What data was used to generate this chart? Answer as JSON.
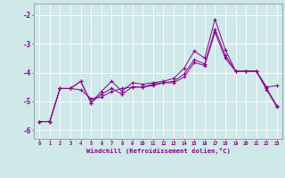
{
  "xlabel": "Windchill (Refroidissement éolien,°C)",
  "background_color": "#cfe8e8",
  "line_color": "#880088",
  "grid_color": "#ffffff",
  "x_hours": [
    0,
    1,
    2,
    3,
    4,
    5,
    6,
    7,
    8,
    9,
    10,
    11,
    12,
    13,
    14,
    15,
    16,
    17,
    18,
    19,
    20,
    21,
    22,
    23
  ],
  "x_labels": [
    "0",
    "1",
    "2",
    "3",
    "4",
    "5",
    "6",
    "7",
    "8",
    "9",
    "10",
    "11",
    "12",
    "13",
    "14",
    "15",
    "16",
    "17",
    "18",
    "19",
    "20",
    "21",
    "22",
    "23"
  ],
  "series1": [
    -5.7,
    -5.7,
    -4.55,
    -4.55,
    -4.3,
    -5.05,
    -4.65,
    -4.3,
    -4.65,
    -4.35,
    -4.4,
    -4.35,
    -4.3,
    -4.2,
    -3.85,
    -3.25,
    -3.5,
    -2.15,
    -3.2,
    -3.95,
    -3.95,
    -3.95,
    -4.5,
    -4.45
  ],
  "series2": [
    -5.7,
    -5.7,
    -4.55,
    -4.55,
    -4.3,
    -5.05,
    -4.75,
    -4.55,
    -4.75,
    -4.5,
    -4.5,
    -4.4,
    -4.35,
    -4.3,
    -4.05,
    -3.55,
    -3.7,
    -2.5,
    -3.4,
    -3.95,
    -3.95,
    -3.95,
    -4.55,
    -5.15
  ],
  "series3": [
    -5.7,
    -5.7,
    -4.55,
    -4.55,
    -4.6,
    -4.9,
    -4.85,
    -4.65,
    -4.55,
    -4.5,
    -4.5,
    -4.45,
    -4.35,
    -4.35,
    -4.15,
    -3.65,
    -3.75,
    -2.6,
    -3.5,
    -3.95,
    -3.95,
    -3.95,
    -4.6,
    -5.2
  ],
  "yticks": [
    -6,
    -5,
    -4,
    -3,
    -2
  ],
  "ylim": [
    -6.3,
    -1.6
  ],
  "xlim": [
    -0.5,
    23.5
  ]
}
